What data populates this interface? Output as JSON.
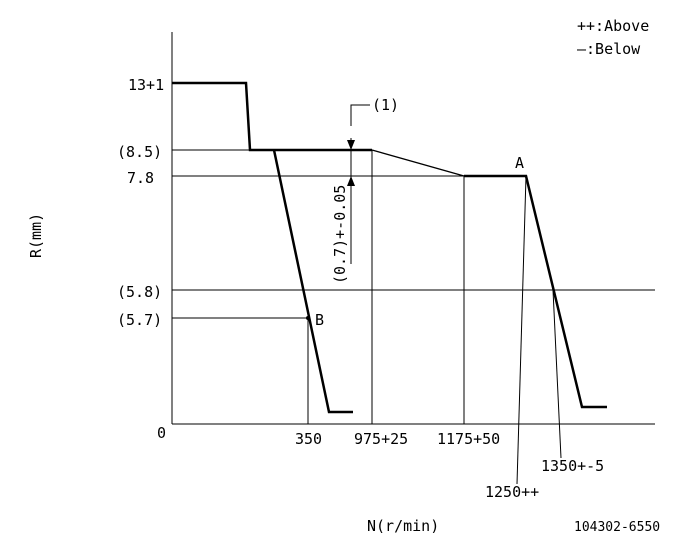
{
  "legend": {
    "above": "++:Above",
    "below": "—:Below"
  },
  "axes": {
    "y_label": "R(mm)",
    "x_label": "N(r/min)",
    "origin": "0"
  },
  "y_ticks": {
    "t13": "13+1",
    "t85": "(8.5)",
    "t78": "7.8",
    "t58": "(5.8)",
    "t57": "(5.7)"
  },
  "x_ticks": {
    "n350": "350",
    "n975": "975+25",
    "n1175": "1175+50",
    "n1250": "1250++",
    "n1350": "1350+-5"
  },
  "annotations": {
    "ref1": "(1)",
    "offset": "(0.7)+-0.05",
    "point_a": "A",
    "point_b": "B"
  },
  "part_number": "104302-6550"
}
